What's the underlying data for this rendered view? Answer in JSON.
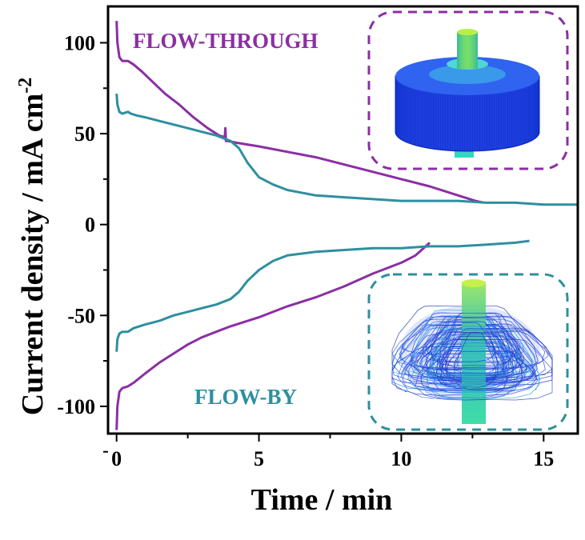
{
  "chart_data": {
    "type": "line",
    "xlabel": "Time / min",
    "ylabel_text": "Current density / mA cm",
    "ylabel_superscript": "-2",
    "xlim": [
      -0.3,
      16.2
    ],
    "ylim": [
      -115,
      120
    ],
    "xticks": [
      0,
      5,
      10,
      15
    ],
    "xtick_labels": [
      "0",
      "5",
      "10",
      "15"
    ],
    "yticks": [
      100,
      50,
      0,
      -50,
      -100
    ],
    "ytick_labels": [
      "100",
      "50",
      "0",
      "-50",
      "-100"
    ],
    "grid": false,
    "annotations": [
      {
        "text": "FLOW-THROUGH",
        "color": "#8b2fa3"
      },
      {
        "text": "FLOW-BY",
        "color": "#2e8fa0"
      }
    ],
    "series": [
      {
        "color": "#8b2fa3",
        "x": [
          0.0,
          0.03,
          0.1,
          0.2,
          0.4,
          0.6,
          0.9,
          1.3,
          1.7,
          2.2,
          2.7,
          3.2,
          3.6,
          3.8,
          3.82,
          3.84,
          3.9,
          4.2,
          5,
          6,
          7,
          8,
          9,
          10,
          11,
          12,
          12.6,
          12.9
        ],
        "y": [
          112,
          100,
          92,
          90,
          90,
          88,
          84,
          78,
          72,
          66,
          59,
          53,
          49,
          48,
          53,
          46,
          46,
          45,
          43,
          40,
          37,
          33,
          29,
          25,
          21,
          16,
          13,
          12
        ]
      },
      {
        "color": "#2e8fa0",
        "x": [
          0.0,
          0.03,
          0.1,
          0.2,
          0.4,
          0.5,
          0.7,
          1,
          1.5,
          2,
          2.5,
          3,
          3.5,
          4,
          4.3,
          4.6,
          5,
          5.5,
          6,
          7,
          8,
          9,
          10,
          11,
          12,
          13,
          14,
          15,
          16.2
        ],
        "y": [
          72,
          66,
          62,
          61,
          62,
          61,
          60,
          59,
          57,
          55,
          53,
          51,
          49,
          46,
          42,
          34,
          26,
          22,
          19,
          16,
          15,
          14,
          13,
          13,
          13,
          12,
          12,
          11,
          11
        ]
      },
      {
        "color": "#8b2fa3",
        "x": [
          0.0,
          0.03,
          0.1,
          0.2,
          0.4,
          0.6,
          1,
          1.5,
          2,
          2.5,
          3,
          3.5,
          4,
          5,
          6,
          7,
          8,
          9,
          10,
          10.5,
          11
        ],
        "y": [
          -113,
          -100,
          -92,
          -90,
          -89,
          -87,
          -82,
          -76,
          -71,
          -66,
          -62,
          -59,
          -56,
          -51,
          -45,
          -40,
          -34,
          -27,
          -21,
          -17,
          -10
        ]
      },
      {
        "color": "#2e8fa0",
        "x": [
          0.0,
          0.03,
          0.1,
          0.2,
          0.4,
          0.6,
          1,
          1.5,
          2,
          2.5,
          3,
          3.5,
          4,
          4.3,
          4.6,
          5,
          5.5,
          6,
          7,
          8,
          9,
          10,
          11,
          12,
          13,
          14,
          14.5
        ],
        "y": [
          -70,
          -63,
          -60,
          -59,
          -59,
          -57,
          -55,
          -53,
          -50,
          -48,
          -46,
          -44,
          -41,
          -37,
          -31,
          -25,
          -20,
          -17,
          -15,
          -14,
          -13,
          -13,
          -12,
          -12,
          -11,
          -10,
          -9
        ]
      }
    ]
  }
}
